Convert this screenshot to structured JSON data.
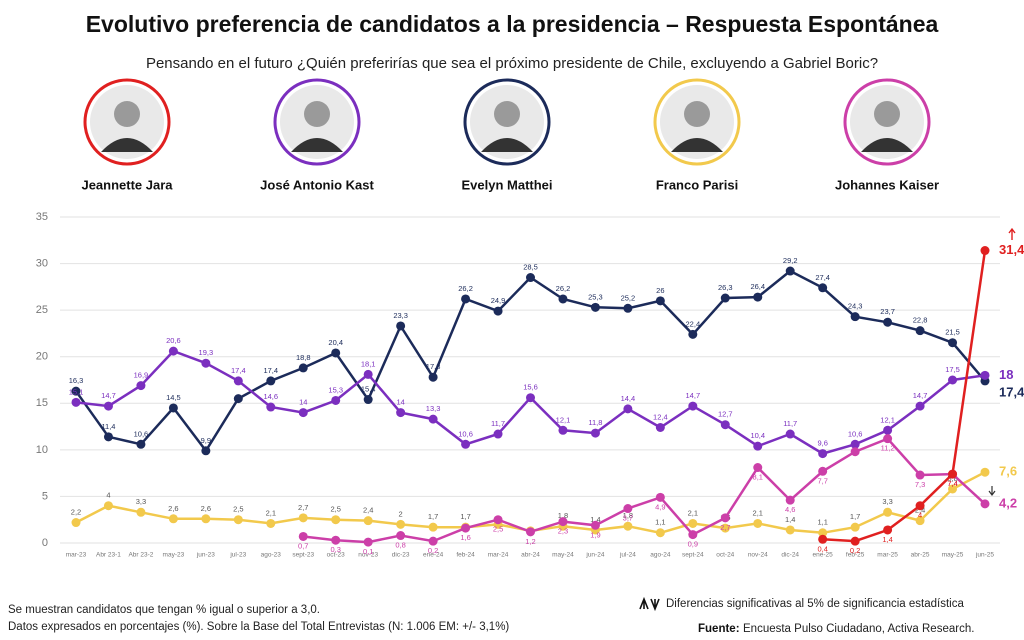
{
  "chart_data": {
    "type": "line",
    "title": "Evolutivo preferencia de candidatos a la presidencia – Respuesta Espontánea",
    "subtitle": "Pensando en el futuro ¿Quién preferirías que sea el próximo presidente de Chile, excluyendo a Gabriel Boric?",
    "candidates": [
      "Jeannette Jara",
      "José Antonio Kast",
      "Evelyn Matthei",
      "Franco Parisi",
      "Johannes Kaiser"
    ],
    "categories": [
      "mar-23",
      "Abr 23-1",
      "Abr 23-2",
      "may-23",
      "jun-23",
      "jul-23",
      "ago-23",
      "sept-23",
      "oct-23",
      "nov-23",
      "dic-23",
      "ene-24",
      "feb-24",
      "mar-24",
      "abr-24",
      "may-24",
      "jun-24",
      "jul-24",
      "ago-24",
      "sept-24",
      "oct-24",
      "nov-24",
      "dic-24",
      "ene-25",
      "feb-25",
      "mar-25",
      "abr-25",
      "may-25",
      "jun-25"
    ],
    "ylim": [
      0,
      35
    ],
    "yticks": [
      0,
      5,
      10,
      15,
      20,
      25,
      30,
      35
    ],
    "grid": true,
    "series": [
      {
        "name": "Evelyn Matthei",
        "color": "#1c2b5a",
        "values": [
          16.3,
          11.4,
          10.6,
          14.5,
          9.9,
          15.5,
          17.4,
          18.8,
          20.4,
          15.4,
          23.3,
          17.8,
          26.2,
          24.9,
          28.5,
          26.2,
          25.3,
          25.2,
          26,
          22.4,
          26.3,
          26.4,
          29.2,
          27.4,
          24.3,
          23.7,
          22.8,
          21.5,
          17.4
        ],
        "value_labels": [
          "16,3",
          "11,4",
          "10,6",
          "14,5",
          "9,9",
          null,
          "17,4",
          "18,8",
          "20,4",
          "15,4",
          "23,3",
          "17,8",
          "26,2",
          "24,9",
          "28,5",
          "26,2",
          "25,3",
          "25,2",
          "26",
          "22,4",
          "26,3",
          "26,4",
          "29,2",
          "27,4",
          "24,3",
          "23,7",
          "22,8",
          "21,5",
          "17,4"
        ]
      },
      {
        "name": "José Antonio Kast",
        "color": "#7b2fbf",
        "values": [
          15.1,
          14.7,
          16.9,
          20.6,
          19.3,
          17.4,
          14.6,
          14,
          15.3,
          18.1,
          14,
          13.3,
          10.6,
          11.7,
          15.6,
          12.1,
          11.8,
          14.4,
          12.4,
          14.7,
          12.7,
          10.4,
          11.7,
          9.6,
          10.6,
          12.1,
          14.7,
          17.5,
          18
        ],
        "value_labels": [
          "15,1",
          "14,7",
          "16,9",
          "20,6",
          "19,3",
          "17,4",
          "14,6",
          "14",
          "15,3",
          "18,1",
          "14",
          "13,3",
          "10,6",
          "11,7",
          "15,6",
          "12,1",
          "11,8",
          "14,4",
          "12,4",
          "14,7",
          "12,7",
          "10,4",
          "11,7",
          "9,6",
          "10,6",
          "12,1",
          "14,7",
          "17,5",
          "18"
        ]
      },
      {
        "name": "Franco Parisi",
        "color": "#f2c94c",
        "values": [
          2.2,
          4,
          3.3,
          2.6,
          2.6,
          2.5,
          2.1,
          2.7,
          2.5,
          2.4,
          2,
          1.7,
          1.7,
          2,
          1.3,
          1.8,
          1.4,
          1.8,
          1.1,
          2.1,
          1.6,
          2.1,
          1.4,
          1.1,
          1.7,
          3.3,
          2.4,
          5.8,
          7.6
        ],
        "value_labels": [
          "2,2",
          "4",
          "3,3",
          "2,6",
          "2,6",
          "2,5",
          "2,1",
          "2,7",
          "2,5",
          "2,4",
          "2",
          "1,7",
          "1,7",
          null,
          null,
          "1,8",
          "1,4",
          "1,8",
          "1,1",
          "2,1",
          "1,6",
          "2,1",
          "1,4",
          "1,1",
          "1,7",
          "3,3",
          "2,4",
          "5,8",
          "7,6"
        ]
      },
      {
        "name": "Johannes Kaiser",
        "color": "#cc3fa8",
        "values": [
          null,
          null,
          null,
          null,
          null,
          null,
          null,
          0.7,
          0.3,
          0.1,
          0.8,
          0.2,
          1.6,
          2.5,
          1.2,
          2.3,
          1.9,
          3.7,
          4.9,
          0.9,
          2.7,
          8.1,
          4.6,
          7.7,
          9.8,
          11.2,
          7.3,
          7.4,
          4.2
        ],
        "value_labels": [
          null,
          null,
          null,
          null,
          null,
          null,
          null,
          "0,7",
          "0,3",
          "0,1",
          "0,8",
          "0,2",
          "1,6",
          "2,5",
          "1,2",
          "2,3",
          "1,9",
          "3,7",
          "4,9",
          "0,9",
          "2,7",
          "8,1",
          "4,6",
          "7,7",
          null,
          "11,2",
          "7,3",
          "7,4",
          "4,2"
        ]
      },
      {
        "name": "Jeannette Jara",
        "color": "#e02020",
        "values": [
          null,
          null,
          null,
          null,
          null,
          null,
          null,
          null,
          null,
          null,
          null,
          null,
          null,
          null,
          null,
          null,
          null,
          null,
          null,
          null,
          null,
          null,
          null,
          0.4,
          0.2,
          1.4,
          4,
          7.4,
          31.4
        ],
        "value_labels": [
          null,
          null,
          null,
          null,
          null,
          null,
          null,
          null,
          null,
          null,
          null,
          null,
          null,
          null,
          null,
          null,
          null,
          null,
          null,
          null,
          null,
          null,
          null,
          "0,4",
          "0,2",
          "1,4",
          "4",
          "7,4",
          "31,4"
        ]
      }
    ],
    "candidate_colors": [
      "#e02020",
      "#7b2fbf",
      "#1c2b5a",
      "#f2c94c",
      "#cc3fa8"
    ],
    "footnotes": [
      "Se muestran candidatos que tengan % igual o superior a 3,0.",
      "Datos expresados en porcentajes (%). Sobre la Base del Total Entrevistas (N: 1.006 EM: +/- 3,1%)"
    ],
    "significance_note": "Diferencias significativas al 5% de significancia estadística",
    "source_label": "Fuente:",
    "source": "Encuesta Pulso Ciudadano, Activa Research."
  }
}
